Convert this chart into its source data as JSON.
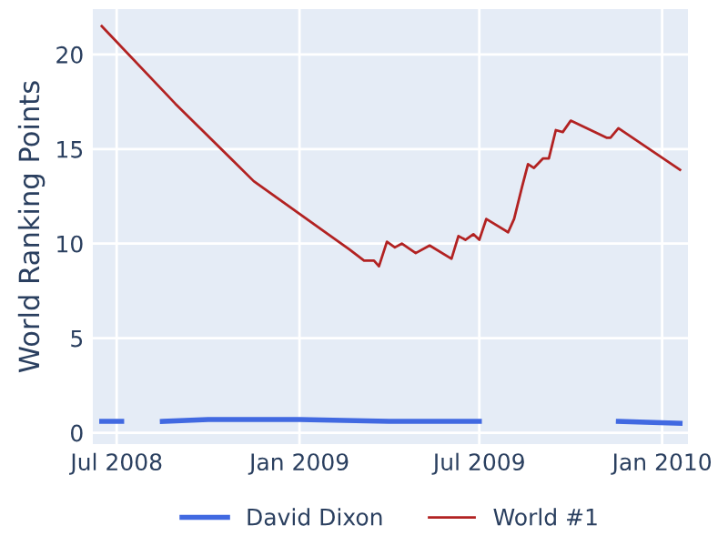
{
  "chart_data": {
    "type": "line",
    "ylabel": "World Ranking Points",
    "xlim": [
      "2008-06-07",
      "2010-01-27"
    ],
    "ylim": [
      -0.6,
      22.4
    ],
    "xticks": [
      {
        "value": "2008-07-01",
        "label": "Jul 2008"
      },
      {
        "value": "2009-01-01",
        "label": "Jan 2009"
      },
      {
        "value": "2009-07-01",
        "label": "Jul 2009"
      },
      {
        "value": "2010-01-01",
        "label": "Jan 2010"
      }
    ],
    "yticks": [
      0,
      5,
      10,
      15,
      20
    ],
    "grid": true,
    "legend": "bottom",
    "series": [
      {
        "name": "David Dixon",
        "color": "#4169e1",
        "x": [
          "2008-06-16",
          "2008-07-06",
          "2008-07-20",
          "2008-08-16",
          "2008-10-01",
          "2009-01-01",
          "2009-04-01",
          "2009-07-01",
          "2009-09-01",
          "2009-11-18",
          "2010-01-19"
        ],
        "values": [
          0.6,
          0.6,
          null,
          0.6,
          0.7,
          0.7,
          0.6,
          0.6,
          null,
          0.6,
          0.5
        ]
      },
      {
        "name": "World #1",
        "color": "#b22222",
        "x": [
          "2008-06-16",
          "2008-08-29",
          "2008-11-16",
          "2009-02-20",
          "2009-03-07",
          "2009-03-17",
          "2009-03-22",
          "2009-03-30",
          "2009-04-07",
          "2009-04-14",
          "2009-04-28",
          "2009-05-12",
          "2009-06-03",
          "2009-06-10",
          "2009-06-17",
          "2009-06-25",
          "2009-07-01",
          "2009-07-08",
          "2009-07-30",
          "2009-08-05",
          "2009-08-13",
          "2009-08-19",
          "2009-08-25",
          "2009-09-03",
          "2009-09-09",
          "2009-09-16",
          "2009-09-23",
          "2009-10-01",
          "2009-11-06",
          "2009-11-10",
          "2009-11-18",
          "2010-01-19"
        ],
        "values": [
          21.5,
          17.4,
          13.3,
          9.7,
          9.1,
          9.1,
          8.8,
          10.1,
          9.8,
          10.0,
          9.5,
          9.9,
          9.2,
          10.4,
          10.2,
          10.5,
          10.2,
          11.3,
          10.6,
          11.3,
          13.0,
          14.2,
          14.0,
          14.5,
          14.5,
          16.0,
          15.9,
          16.5,
          15.6,
          15.6,
          16.1,
          13.9
        ]
      }
    ]
  }
}
